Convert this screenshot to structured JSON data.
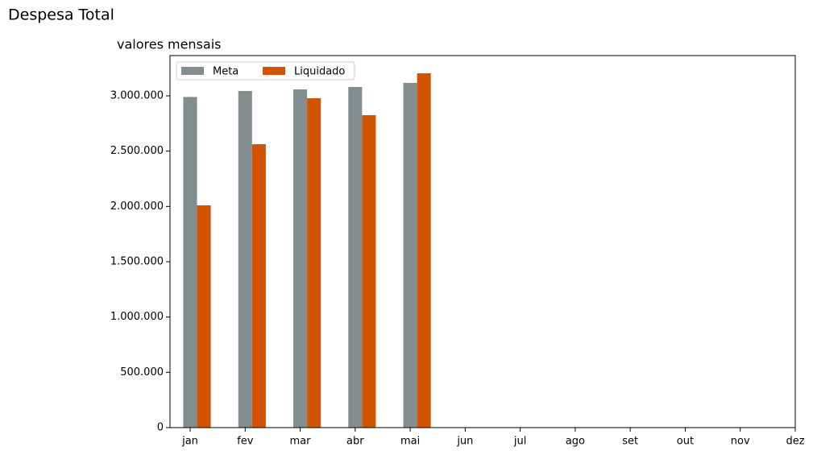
{
  "chart_data": {
    "type": "bar",
    "title": "Despesa Total",
    "subtitle": "valores mensais",
    "categories": [
      "jan",
      "fev",
      "mar",
      "abr",
      "mai",
      "jun",
      "jul",
      "ago",
      "set",
      "out",
      "nov",
      "dez"
    ],
    "series": [
      {
        "name": "Meta",
        "color": "#828d8d",
        "values": [
          2990000,
          3044000,
          3058000,
          3080000,
          3117000,
          null,
          null,
          null,
          null,
          null,
          null,
          null
        ]
      },
      {
        "name": "Liquidado",
        "color": "#d35400",
        "values": [
          2010000,
          2563000,
          2978000,
          2825000,
          3204000,
          null,
          null,
          null,
          null,
          null,
          null,
          null
        ]
      }
    ],
    "ylim": [
      0,
      3364000
    ],
    "yticks": [
      0,
      {
        "value": 500000,
        "label": "500.000"
      },
      {
        "value": 1000000,
        "label": "1.000.000"
      },
      {
        "value": 1500000,
        "label": "1.500.000"
      },
      {
        "value": 2000000,
        "label": "2.000.000"
      },
      {
        "value": 2500000,
        "label": "2.500.000"
      },
      {
        "value": 3000000,
        "label": "3.000.000"
      }
    ],
    "legend": "upper left",
    "grid": false
  }
}
